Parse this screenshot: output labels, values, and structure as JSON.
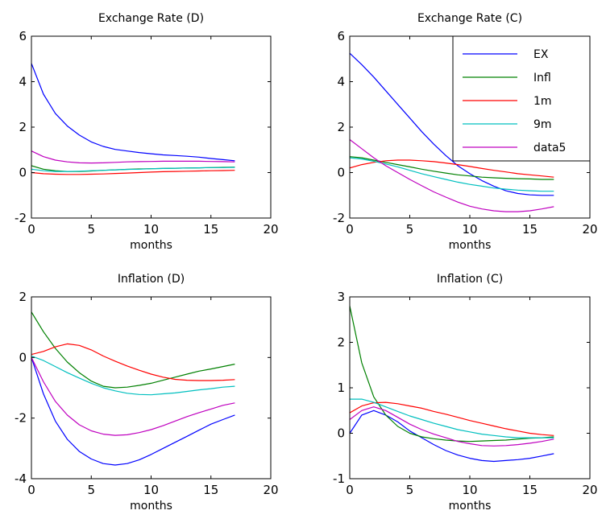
{
  "colors": {
    "EX": "#0000ff",
    "Infl": "#008000",
    "1m": "#ff0000",
    "9m": "#00bfbf",
    "data5": "#bf00bf"
  },
  "legend": {
    "series": [
      "EX",
      "Infl",
      "1m",
      "9m",
      "data5"
    ]
  },
  "chart_data": [
    {
      "type": "line",
      "title": "Exchange Rate (D)",
      "xlabel": "months",
      "ylabel": "",
      "xlim": [
        0,
        20
      ],
      "ylim": [
        -2,
        6
      ],
      "xticks": [
        0,
        5,
        10,
        15,
        20
      ],
      "yticks": [
        -2,
        0,
        2,
        4,
        6
      ],
      "grid": false,
      "series": [
        {
          "name": "EX",
          "x": [
            0,
            1,
            2,
            3,
            4,
            5,
            6,
            7,
            8,
            9,
            10,
            11,
            12,
            13,
            14,
            15,
            16,
            17
          ],
          "y": [
            4.8,
            3.45,
            2.6,
            2.05,
            1.65,
            1.35,
            1.15,
            1.02,
            0.95,
            0.88,
            0.83,
            0.78,
            0.75,
            0.72,
            0.68,
            0.62,
            0.57,
            0.52
          ]
        },
        {
          "name": "Infl",
          "x": [
            0,
            1,
            2,
            3,
            4,
            5,
            6,
            7,
            8,
            9,
            10,
            11,
            12,
            13,
            14,
            15,
            16,
            17
          ],
          "y": [
            0.3,
            0.15,
            0.08,
            0.05,
            0.05,
            0.07,
            0.1,
            0.12,
            0.14,
            0.16,
            0.17,
            0.18,
            0.19,
            0.2,
            0.21,
            0.22,
            0.23,
            0.24
          ]
        },
        {
          "name": "1m",
          "x": [
            0,
            1,
            2,
            3,
            4,
            5,
            6,
            7,
            8,
            9,
            10,
            11,
            12,
            13,
            14,
            15,
            16,
            17
          ],
          "y": [
            0.0,
            -0.05,
            -0.07,
            -0.08,
            -0.08,
            -0.07,
            -0.06,
            -0.04,
            -0.02,
            0.0,
            0.02,
            0.04,
            0.05,
            0.06,
            0.07,
            0.08,
            0.09,
            0.1
          ]
        },
        {
          "name": "9m",
          "x": [
            0,
            1,
            2,
            3,
            4,
            5,
            6,
            7,
            8,
            9,
            10,
            11,
            12,
            13,
            14,
            15,
            16,
            17
          ],
          "y": [
            0.15,
            0.08,
            0.05,
            0.05,
            0.06,
            0.08,
            0.1,
            0.12,
            0.14,
            0.15,
            0.17,
            0.18,
            0.19,
            0.2,
            0.21,
            0.22,
            0.22,
            0.23
          ]
        },
        {
          "name": "data5",
          "x": [
            0,
            1,
            2,
            3,
            4,
            5,
            6,
            7,
            8,
            9,
            10,
            11,
            12,
            13,
            14,
            15,
            16,
            17
          ],
          "y": [
            0.95,
            0.7,
            0.55,
            0.47,
            0.43,
            0.42,
            0.43,
            0.45,
            0.47,
            0.48,
            0.49,
            0.5,
            0.5,
            0.5,
            0.5,
            0.49,
            0.48,
            0.47
          ]
        }
      ]
    },
    {
      "type": "line",
      "title": "Exchange Rate (C)",
      "xlabel": "months",
      "ylabel": "",
      "xlim": [
        0,
        20
      ],
      "ylim": [
        -2,
        6
      ],
      "xticks": [
        0,
        5,
        10,
        15,
        20
      ],
      "yticks": [
        -2,
        0,
        2,
        4,
        6
      ],
      "grid": false,
      "legend_position": "top-right",
      "series": [
        {
          "name": "EX",
          "x": [
            0,
            1,
            2,
            3,
            4,
            5,
            6,
            7,
            8,
            9,
            10,
            11,
            12,
            13,
            14,
            15,
            16,
            17
          ],
          "y": [
            5.25,
            4.75,
            4.2,
            3.6,
            3.0,
            2.4,
            1.8,
            1.25,
            0.75,
            0.3,
            -0.05,
            -0.35,
            -0.6,
            -0.8,
            -0.92,
            -0.98,
            -1.0,
            -1.0
          ]
        },
        {
          "name": "Infl",
          "x": [
            0,
            1,
            2,
            3,
            4,
            5,
            6,
            7,
            8,
            9,
            10,
            11,
            12,
            13,
            14,
            15,
            16,
            17
          ],
          "y": [
            0.7,
            0.65,
            0.55,
            0.45,
            0.35,
            0.25,
            0.15,
            0.06,
            -0.02,
            -0.1,
            -0.15,
            -0.2,
            -0.23,
            -0.25,
            -0.27,
            -0.28,
            -0.3,
            -0.3
          ]
        },
        {
          "name": "1m",
          "x": [
            0,
            1,
            2,
            3,
            4,
            5,
            6,
            7,
            8,
            9,
            10,
            11,
            12,
            13,
            14,
            15,
            16,
            17
          ],
          "y": [
            0.2,
            0.35,
            0.45,
            0.52,
            0.55,
            0.55,
            0.52,
            0.48,
            0.42,
            0.35,
            0.27,
            0.18,
            0.1,
            0.03,
            -0.05,
            -0.1,
            -0.15,
            -0.2
          ]
        },
        {
          "name": "9m",
          "x": [
            0,
            1,
            2,
            3,
            4,
            5,
            6,
            7,
            8,
            9,
            10,
            11,
            12,
            13,
            14,
            15,
            16,
            17
          ],
          "y": [
            0.65,
            0.6,
            0.5,
            0.38,
            0.25,
            0.1,
            -0.05,
            -0.18,
            -0.3,
            -0.42,
            -0.52,
            -0.6,
            -0.68,
            -0.73,
            -0.77,
            -0.8,
            -0.82,
            -0.82
          ]
        },
        {
          "name": "data5",
          "x": [
            0,
            1,
            2,
            3,
            4,
            5,
            6,
            7,
            8,
            9,
            10,
            11,
            12,
            13,
            14,
            15,
            16,
            17
          ],
          "y": [
            1.45,
            1.05,
            0.65,
            0.3,
            0.0,
            -0.3,
            -0.58,
            -0.85,
            -1.08,
            -1.3,
            -1.48,
            -1.6,
            -1.68,
            -1.72,
            -1.72,
            -1.68,
            -1.6,
            -1.5
          ]
        }
      ]
    },
    {
      "type": "line",
      "title": "Inflation (D)",
      "xlabel": "months",
      "ylabel": "",
      "xlim": [
        0,
        20
      ],
      "ylim": [
        -4,
        2
      ],
      "xticks": [
        0,
        5,
        10,
        15,
        20
      ],
      "yticks": [
        -4,
        -2,
        0,
        2
      ],
      "grid": false,
      "series": [
        {
          "name": "EX",
          "x": [
            0,
            1,
            2,
            3,
            4,
            5,
            6,
            7,
            8,
            9,
            10,
            11,
            12,
            13,
            14,
            15,
            16,
            17
          ],
          "y": [
            0.0,
            -1.2,
            -2.1,
            -2.7,
            -3.1,
            -3.35,
            -3.5,
            -3.55,
            -3.5,
            -3.38,
            -3.2,
            -3.0,
            -2.8,
            -2.6,
            -2.4,
            -2.2,
            -2.05,
            -1.9
          ]
        },
        {
          "name": "Infl",
          "x": [
            0,
            1,
            2,
            3,
            4,
            5,
            6,
            7,
            8,
            9,
            10,
            11,
            12,
            13,
            14,
            15,
            16,
            17
          ],
          "y": [
            1.5,
            0.85,
            0.3,
            -0.15,
            -0.5,
            -0.78,
            -0.95,
            -1.0,
            -0.98,
            -0.92,
            -0.85,
            -0.75,
            -0.65,
            -0.55,
            -0.45,
            -0.38,
            -0.3,
            -0.22
          ]
        },
        {
          "name": "1m",
          "x": [
            0,
            1,
            2,
            3,
            4,
            5,
            6,
            7,
            8,
            9,
            10,
            11,
            12,
            13,
            14,
            15,
            16,
            17
          ],
          "y": [
            0.1,
            0.2,
            0.35,
            0.45,
            0.4,
            0.25,
            0.05,
            -0.12,
            -0.28,
            -0.42,
            -0.55,
            -0.65,
            -0.72,
            -0.75,
            -0.76,
            -0.76,
            -0.75,
            -0.73
          ]
        },
        {
          "name": "9m",
          "x": [
            0,
            1,
            2,
            3,
            4,
            5,
            6,
            7,
            8,
            9,
            10,
            11,
            12,
            13,
            14,
            15,
            16,
            17
          ],
          "y": [
            0.05,
            -0.1,
            -0.3,
            -0.5,
            -0.68,
            -0.85,
            -1.0,
            -1.1,
            -1.18,
            -1.22,
            -1.23,
            -1.2,
            -1.17,
            -1.12,
            -1.07,
            -1.03,
            -0.98,
            -0.95
          ]
        },
        {
          "name": "data5",
          "x": [
            0,
            1,
            2,
            3,
            4,
            5,
            6,
            7,
            8,
            9,
            10,
            11,
            12,
            13,
            14,
            15,
            16,
            17
          ],
          "y": [
            0.0,
            -0.8,
            -1.45,
            -1.9,
            -2.22,
            -2.42,
            -2.53,
            -2.57,
            -2.55,
            -2.48,
            -2.38,
            -2.25,
            -2.1,
            -1.95,
            -1.82,
            -1.7,
            -1.58,
            -1.5
          ]
        }
      ]
    },
    {
      "type": "line",
      "title": "Inflation (C)",
      "xlabel": "months",
      "ylabel": "",
      "xlim": [
        0,
        20
      ],
      "ylim": [
        -1,
        3
      ],
      "xticks": [
        0,
        5,
        10,
        15,
        20
      ],
      "yticks": [
        -1,
        0,
        1,
        2,
        3
      ],
      "grid": false,
      "series": [
        {
          "name": "EX",
          "x": [
            0,
            1,
            2,
            3,
            4,
            5,
            6,
            7,
            8,
            9,
            10,
            11,
            12,
            13,
            14,
            15,
            16,
            17
          ],
          "y": [
            0.0,
            0.4,
            0.5,
            0.4,
            0.25,
            0.05,
            -0.1,
            -0.25,
            -0.38,
            -0.48,
            -0.55,
            -0.6,
            -0.62,
            -0.6,
            -0.58,
            -0.55,
            -0.5,
            -0.45
          ]
        },
        {
          "name": "Infl",
          "x": [
            0,
            1,
            2,
            3,
            4,
            5,
            6,
            7,
            8,
            9,
            10,
            11,
            12,
            13,
            14,
            15,
            16,
            17
          ],
          "y": [
            2.8,
            1.55,
            0.8,
            0.4,
            0.15,
            0.0,
            -0.08,
            -0.12,
            -0.15,
            -0.17,
            -0.18,
            -0.17,
            -0.16,
            -0.15,
            -0.13,
            -0.11,
            -0.1,
            -0.08
          ]
        },
        {
          "name": "1m",
          "x": [
            0,
            1,
            2,
            3,
            4,
            5,
            6,
            7,
            8,
            9,
            10,
            11,
            12,
            13,
            14,
            15,
            16,
            17
          ],
          "y": [
            0.45,
            0.6,
            0.67,
            0.68,
            0.65,
            0.6,
            0.55,
            0.48,
            0.42,
            0.35,
            0.28,
            0.22,
            0.16,
            0.1,
            0.05,
            0.0,
            -0.03,
            -0.05
          ]
        },
        {
          "name": "9m",
          "x": [
            0,
            1,
            2,
            3,
            4,
            5,
            6,
            7,
            8,
            9,
            10,
            11,
            12,
            13,
            14,
            15,
            16,
            17
          ],
          "y": [
            0.75,
            0.75,
            0.68,
            0.58,
            0.48,
            0.38,
            0.3,
            0.22,
            0.15,
            0.08,
            0.03,
            -0.02,
            -0.05,
            -0.08,
            -0.1,
            -0.1,
            -0.1,
            -0.1
          ]
        },
        {
          "name": "data5",
          "x": [
            0,
            1,
            2,
            3,
            4,
            5,
            6,
            7,
            8,
            9,
            10,
            11,
            12,
            13,
            14,
            15,
            16,
            17
          ],
          "y": [
            0.3,
            0.5,
            0.58,
            0.5,
            0.35,
            0.2,
            0.08,
            -0.02,
            -0.1,
            -0.18,
            -0.23,
            -0.27,
            -0.28,
            -0.27,
            -0.25,
            -0.22,
            -0.18,
            -0.13
          ]
        }
      ]
    }
  ]
}
